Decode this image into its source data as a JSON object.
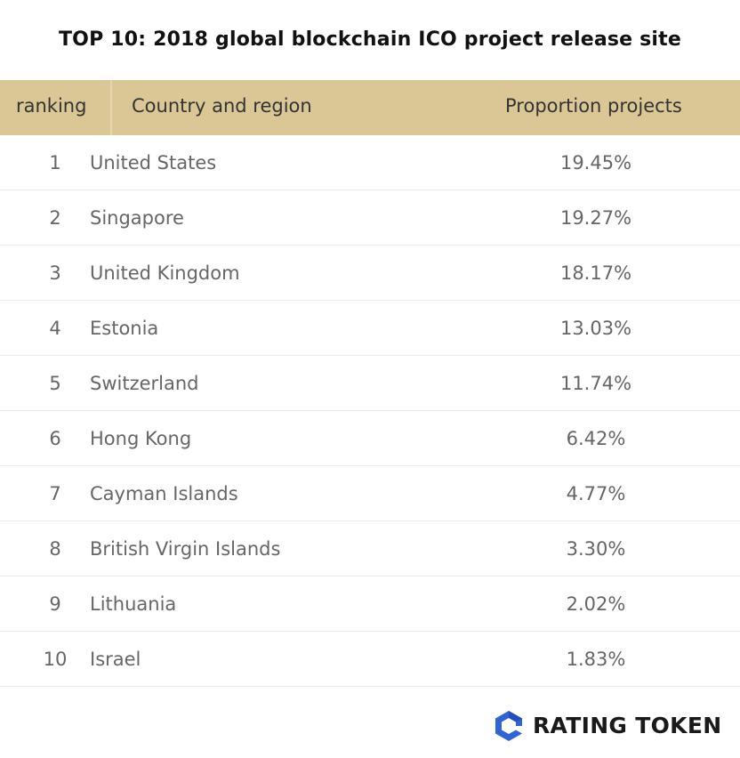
{
  "title": "TOP 10: 2018 global blockchain ICO project release site",
  "columns": {
    "rank": "ranking",
    "country": "Country and region",
    "proportion": "Proportion projects"
  },
  "colors": {
    "header_bg": "#dbc796",
    "logo_blue": "#2f63d8"
  },
  "chart_data": {
    "type": "table",
    "title": "TOP 10: 2018 global blockchain ICO project release site",
    "headers": [
      "ranking",
      "Country and region",
      "Proportion projects"
    ],
    "rows": [
      {
        "rank": "1",
        "country": "United States",
        "proportion": "19.45%"
      },
      {
        "rank": "2",
        "country": "Singapore",
        "proportion": "19.27%"
      },
      {
        "rank": "3",
        "country": "United Kingdom",
        "proportion": "18.17%"
      },
      {
        "rank": "4",
        "country": "Estonia",
        "proportion": "13.03%"
      },
      {
        "rank": "5",
        "country": "Switzerland",
        "proportion": "11.74%"
      },
      {
        "rank": "6",
        "country": "Hong Kong",
        "proportion": "6.42%"
      },
      {
        "rank": "7",
        "country": "Cayman Islands",
        "proportion": "4.77%"
      },
      {
        "rank": "8",
        "country": "British Virgin Islands",
        "proportion": "3.30%"
      },
      {
        "rank": "9",
        "country": "Lithuania",
        "proportion": "2.02%"
      },
      {
        "rank": "10",
        "country": "Israel",
        "proportion": "1.83%"
      }
    ]
  },
  "brand": {
    "logo_icon": "rating-token-logo-icon",
    "name": "RATING TOKEN"
  }
}
